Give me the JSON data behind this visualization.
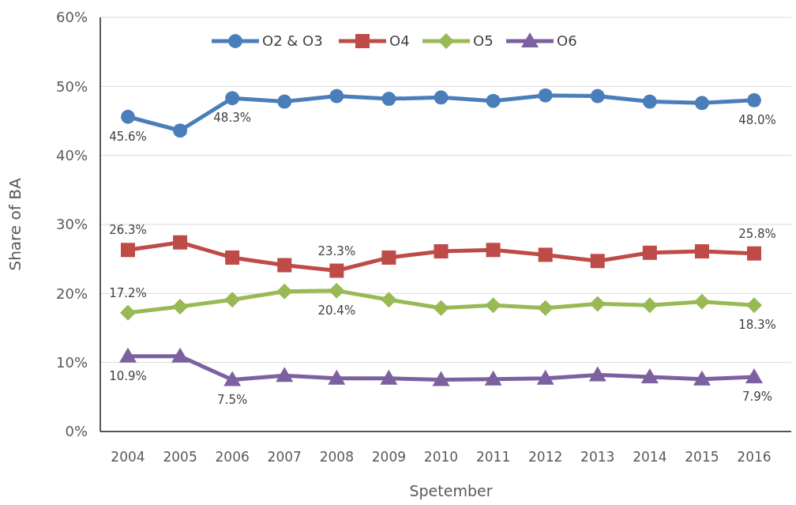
{
  "chart_data": {
    "type": "line",
    "xlabel": "Spetember",
    "ylabel": "Share of BA",
    "categories": [
      "2004",
      "2005",
      "2006",
      "2007",
      "2008",
      "2009",
      "2010",
      "2011",
      "2012",
      "2013",
      "2014",
      "2015",
      "2016"
    ],
    "ylim": [
      0,
      60
    ],
    "yticks": [
      {
        "value": 0,
        "label": "0%"
      },
      {
        "value": 10,
        "label": "10%"
      },
      {
        "value": 20,
        "label": "20%"
      },
      {
        "value": 30,
        "label": "30%"
      },
      {
        "value": 40,
        "label": "40%"
      },
      {
        "value": 50,
        "label": "50%"
      },
      {
        "value": 60,
        "label": "60%"
      }
    ],
    "grid": "y",
    "legend": "top",
    "series": [
      {
        "name": "O2 & O3",
        "color": "#4a7ebb",
        "marker": "circle",
        "values": [
          45.6,
          43.6,
          48.3,
          47.8,
          48.6,
          48.2,
          48.4,
          47.9,
          48.7,
          48.6,
          47.8,
          47.6,
          48.0
        ],
        "value_labels": [
          "45.6%",
          null,
          "48.3%",
          null,
          null,
          null,
          null,
          null,
          null,
          null,
          null,
          null,
          "48.0%"
        ]
      },
      {
        "name": "O4",
        "color": "#be4b48",
        "marker": "square",
        "values": [
          26.3,
          27.4,
          25.2,
          24.1,
          23.3,
          25.2,
          26.1,
          26.3,
          25.6,
          24.7,
          25.9,
          26.1,
          25.8
        ],
        "value_labels": [
          "26.3%",
          null,
          null,
          null,
          "23.3%",
          null,
          null,
          null,
          null,
          null,
          null,
          null,
          "25.8%"
        ]
      },
      {
        "name": "O5",
        "color": "#98b954",
        "marker": "diamond",
        "values": [
          17.2,
          18.1,
          19.1,
          20.3,
          20.4,
          19.1,
          17.9,
          18.3,
          17.9,
          18.5,
          18.3,
          18.8,
          18.3
        ],
        "value_labels": [
          "17.2%",
          null,
          null,
          null,
          "20.4%",
          null,
          null,
          null,
          null,
          null,
          null,
          null,
          "18.3%"
        ]
      },
      {
        "name": "O6",
        "color": "#7d60a0",
        "marker": "triangle",
        "values": [
          10.9,
          10.9,
          7.5,
          8.1,
          7.7,
          7.7,
          7.5,
          7.6,
          7.7,
          8.2,
          7.9,
          7.6,
          7.9
        ],
        "value_labels": [
          "10.9%",
          null,
          "7.5%",
          null,
          null,
          null,
          null,
          null,
          null,
          null,
          null,
          null,
          "7.9%"
        ]
      }
    ]
  }
}
